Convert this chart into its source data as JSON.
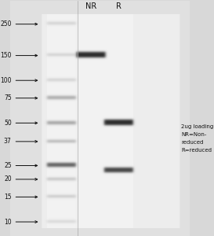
{
  "background_color": "#d8d8d8",
  "gel_bg": "#e8e8e8",
  "lane_bg": "#f0f0f0",
  "fig_width": 2.73,
  "fig_height": 3.0,
  "dpi": 100,
  "marker_labels": [
    "250",
    "150",
    "100",
    "75",
    "50",
    "37",
    "25",
    "20",
    "15",
    "10"
  ],
  "marker_kda": [
    250,
    150,
    100,
    75,
    50,
    37,
    25,
    20,
    15,
    10
  ],
  "col_headers": [
    "NR",
    "R"
  ],
  "annotation_lines": [
    "2ug loading",
    "NR=Non-",
    "reduced",
    "R=reduced"
  ],
  "nr_band_kda": [
    150
  ],
  "nr_band_intensity": [
    1.0
  ],
  "r_band_kda": [
    50,
    23
  ],
  "r_band_intensity": [
    1.0,
    0.85
  ],
  "text_color": "#111111",
  "band_color_dark": "#1a1a1a",
  "band_color_nr": "#111111",
  "band_color_r_heavy": "#222222",
  "band_color_r_light": "#333333",
  "marker_band_color": "#555555",
  "marker_25_color": "#111111"
}
